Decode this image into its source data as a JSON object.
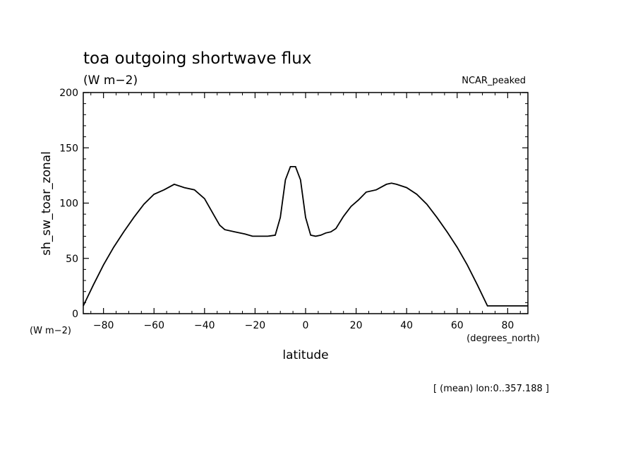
{
  "chart_data": {
    "type": "line",
    "title": "toa outgoing shortwave flux",
    "units": "(W m−2)",
    "dataset_label": "NCAR_peaked",
    "ylabel": "sh_sw_toar_zonal",
    "y_units_label": "(W m−2)",
    "xlabel": "latitude",
    "x_units_label": "(degrees_north)",
    "footer": "[ (mean) lon:0..357.188 ]",
    "xlim": [
      -88,
      88
    ],
    "ylim": [
      0,
      200
    ],
    "xticks": [
      -80,
      -60,
      -40,
      -20,
      0,
      20,
      40,
      60,
      80
    ],
    "xtick_labels": [
      "−80",
      "−60",
      "−40",
      "−20",
      "0",
      "20",
      "40",
      "60",
      "80"
    ],
    "yticks": [
      0,
      50,
      100,
      150,
      200
    ],
    "ytick_labels": [
      "0",
      "50",
      "100",
      "150",
      "200"
    ],
    "series": [
      {
        "x": [
          -88,
          -84,
          -80,
          -76,
          -72,
          -68,
          -64,
          -60,
          -56,
          -52,
          -48,
          -44,
          -40,
          -36,
          -34,
          -32,
          -28,
          -24,
          -21,
          -18,
          -15,
          -12,
          -10,
          -8,
          -6,
          -4,
          -2,
          0,
          2,
          4,
          6,
          8,
          10,
          12,
          15,
          18,
          21,
          24,
          28,
          32,
          34,
          36,
          40,
          44,
          48,
          52,
          56,
          60,
          64,
          68,
          72,
          76,
          80,
          84,
          88
        ],
        "y": [
          7,
          26,
          44,
          60,
          74,
          87,
          99,
          108,
          112,
          117,
          114,
          112,
          104,
          88,
          80,
          76,
          74,
          72,
          70,
          70,
          70,
          71,
          87,
          121,
          133,
          133,
          121,
          87,
          71,
          70,
          71,
          73,
          74,
          77,
          88,
          97,
          103,
          110,
          112,
          117,
          118,
          117,
          114,
          108,
          99,
          87,
          74,
          60,
          44,
          26,
          7,
          7,
          7,
          7,
          7
        ]
      }
    ]
  }
}
